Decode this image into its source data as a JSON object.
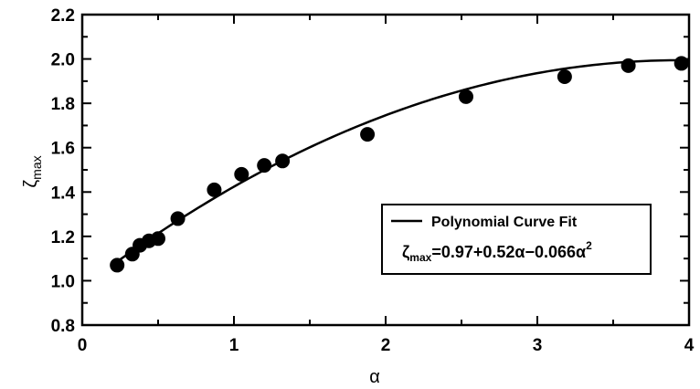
{
  "chart_data": {
    "type": "scatter",
    "xlabel": "α",
    "ylabel": {
      "main": "ζ",
      "sub": "max"
    },
    "xlim": [
      0,
      4
    ],
    "ylim": [
      0.8,
      2.2
    ],
    "xticks": [
      "0",
      "1",
      "2",
      "3",
      "4"
    ],
    "yticks": [
      "0.8",
      "1.0",
      "1.2",
      "1.4",
      "1.6",
      "1.8",
      "2.0",
      "2.2"
    ],
    "grid": false,
    "legend_position": "lower-right",
    "series": [
      {
        "kind": "points",
        "x": [
          0.23,
          0.33,
          0.38,
          0.44,
          0.5,
          0.63,
          0.87,
          1.05,
          1.2,
          1.32,
          1.88,
          2.53,
          3.18,
          3.6,
          3.95
        ],
        "y": [
          1.07,
          1.12,
          1.16,
          1.18,
          1.19,
          1.28,
          1.41,
          1.48,
          1.52,
          1.54,
          1.66,
          1.83,
          1.92,
          1.97,
          1.98
        ]
      },
      {
        "kind": "line",
        "name": "Polynomial Curve Fit",
        "equation": {
          "intercept": 0.97,
          "linear": 0.52,
          "quadratic": -0.066
        },
        "x_range": [
          0.23,
          4.0
        ]
      }
    ],
    "legend": {
      "line_label": "Polynomial Curve Fit",
      "equation": {
        "lhs_main": "ζ",
        "lhs_sub": "max",
        "rhs": "=0.97+0.52α−0.066α",
        "rhs_sup": "2"
      }
    }
  }
}
